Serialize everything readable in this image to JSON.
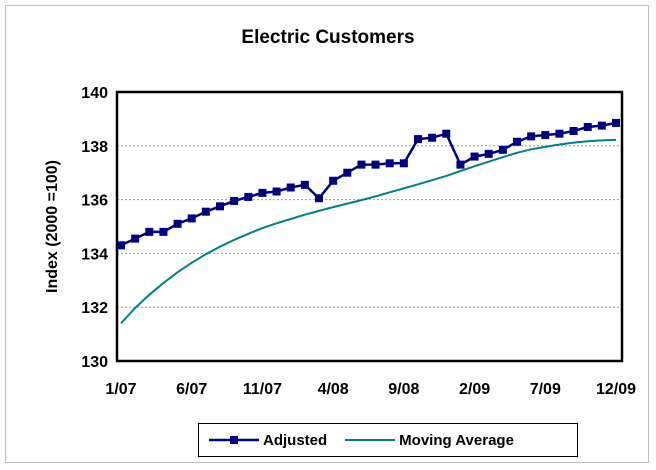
{
  "chart_data": {
    "type": "line",
    "title": "Electric Customers",
    "ylabel": "Index (2000 =100)",
    "ylim": [
      130,
      140
    ],
    "yticks": [
      "130",
      "132",
      "134",
      "136",
      "138",
      "140"
    ],
    "x": [
      "1/07",
      "2/07",
      "3/07",
      "4/07",
      "5/07",
      "6/07",
      "7/07",
      "8/07",
      "9/07",
      "10/07",
      "11/07",
      "12/07",
      "1/08",
      "2/08",
      "3/08",
      "4/08",
      "5/08",
      "6/08",
      "7/08",
      "8/08",
      "9/08",
      "10/08",
      "11/08",
      "12/08",
      "1/09",
      "2/09",
      "3/09",
      "4/09",
      "5/09",
      "6/09",
      "7/09",
      "8/09",
      "9/09",
      "10/09",
      "11/09",
      "12/09"
    ],
    "xtick_labels": [
      "1/07",
      "6/07",
      "11/07",
      "4/08",
      "9/08",
      "2/09",
      "7/09",
      "12/09"
    ],
    "grid": "horizontal",
    "legend_position": "bottom",
    "series": [
      {
        "name": "Adjusted",
        "color": "#000080",
        "marker": "square",
        "values": [
          134.3,
          134.55,
          134.8,
          134.8,
          135.1,
          135.3,
          135.55,
          135.75,
          135.95,
          136.1,
          136.25,
          136.3,
          136.45,
          136.55,
          136.05,
          136.7,
          137.0,
          137.3,
          137.3,
          137.35,
          137.35,
          138.25,
          138.3,
          138.45,
          137.3,
          137.6,
          137.7,
          137.85,
          138.15,
          138.35,
          138.4,
          138.45,
          138.55,
          138.7,
          138.75,
          138.85
        ]
      },
      {
        "name": "Moving Average",
        "color": "#008080",
        "marker": "none",
        "values": [
          131.4,
          131.97,
          132.46,
          132.9,
          133.3,
          133.65,
          133.97,
          134.25,
          134.5,
          134.73,
          134.94,
          135.12,
          135.28,
          135.44,
          135.58,
          135.72,
          135.85,
          135.98,
          136.12,
          136.27,
          136.42,
          136.57,
          136.72,
          136.88,
          137.06,
          137.24,
          137.41,
          137.58,
          137.74,
          137.87,
          137.96,
          138.05,
          138.12,
          138.17,
          138.2,
          138.22
        ]
      }
    ]
  }
}
